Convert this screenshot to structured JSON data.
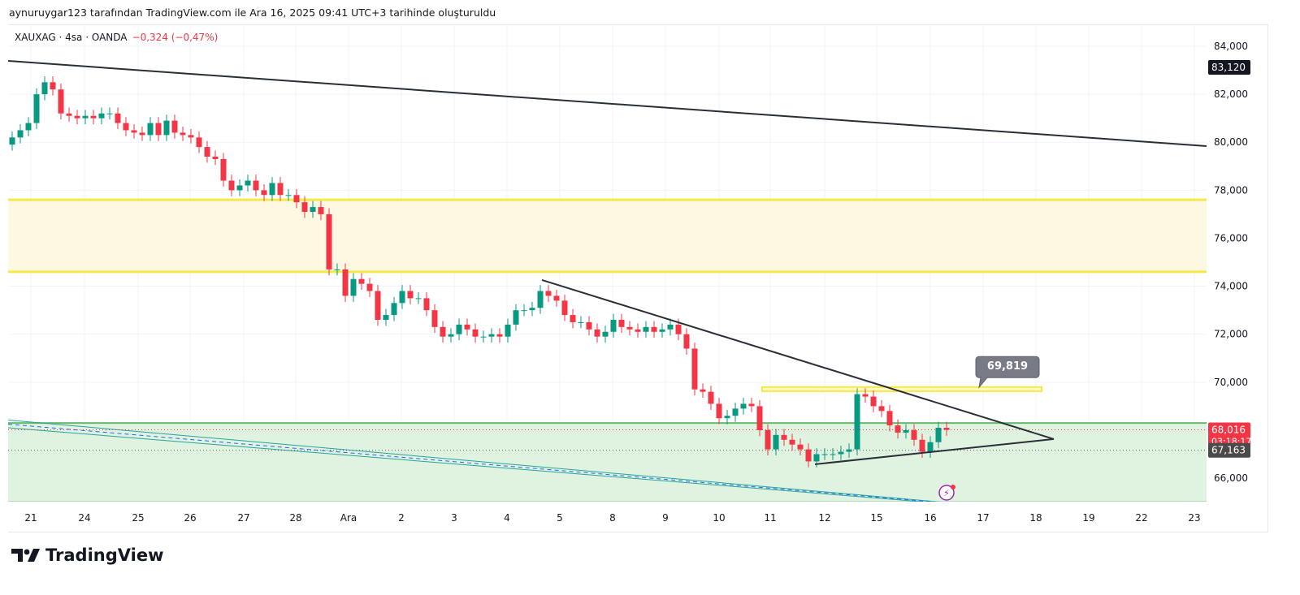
{
  "header": {
    "credit": "aynuruygar123 tarafından TradingView.com ile Ara 16, 2025 09:41 UTC+3 tarihinde oluşturuldu",
    "symbol": "XAUXAG · 4sa · OANDA",
    "change": "−0,324 (−0,47%)"
  },
  "logo": {
    "text": "TradingView"
  },
  "colors": {
    "up": "#089981",
    "down": "#f23645",
    "zone_yellow": "#fdf8e1",
    "zone_green": "#e0f2e0"
  },
  "chart_data": {
    "type": "candlestick",
    "title": "XAUXAG · 4sa · OANDA",
    "ylim": [
      65000,
      85000
    ],
    "y_ticks": [
      "84,000",
      "82,000",
      "80,000",
      "78,000",
      "76,000",
      "74,000",
      "72,000",
      "70,000",
      "66,000"
    ],
    "y_tick_values": [
      84000,
      82000,
      80000,
      78000,
      76000,
      74000,
      72000,
      70000,
      66000
    ],
    "x_ticks": [
      {
        "label": "21",
        "bar": 2.3
      },
      {
        "label": "24",
        "bar": 8.9
      },
      {
        "label": "25",
        "bar": 15.5
      },
      {
        "label": "26",
        "bar": 21.9
      },
      {
        "label": "27",
        "bar": 28.5
      },
      {
        "label": "28",
        "bar": 34.9
      },
      {
        "label": "Ara",
        "bar": 41.4
      },
      {
        "label": "2",
        "bar": 47.9
      },
      {
        "label": "3",
        "bar": 54.4
      },
      {
        "label": "4",
        "bar": 60.9
      },
      {
        "label": "5",
        "bar": 67.4
      },
      {
        "label": "8",
        "bar": 73.9
      },
      {
        "label": "9",
        "bar": 80.4
      },
      {
        "label": "10",
        "bar": 87
      },
      {
        "label": "11",
        "bar": 93.3
      },
      {
        "label": "12",
        "bar": 100
      },
      {
        "label": "15",
        "bar": 106.4
      },
      {
        "label": "16",
        "bar": 113
      },
      {
        "label": "17",
        "bar": 119.5
      },
      {
        "label": "18",
        "bar": 126
      },
      {
        "label": "19",
        "bar": 132.5
      },
      {
        "label": "22",
        "bar": 139
      },
      {
        "label": "23",
        "bar": 145.5
      }
    ],
    "first_open": 79900,
    "closes": [
      80200,
      80500,
      80800,
      82000,
      82500,
      82200,
      81200,
      81100,
      81000,
      81100,
      81000,
      81200,
      81200,
      80800,
      80500,
      80400,
      80300,
      80800,
      80300,
      80900,
      80400,
      80300,
      80200,
      79800,
      79400,
      79300,
      78400,
      78000,
      78200,
      78400,
      78000,
      77800,
      78300,
      77800,
      77800,
      77500,
      77100,
      77300,
      77000,
      74700,
      74700,
      73600,
      74300,
      74100,
      73800,
      72600,
      72800,
      73300,
      73800,
      73500,
      73500,
      73000,
      72300,
      71900,
      72000,
      72400,
      72200,
      71900,
      71900,
      72000,
      71900,
      72400,
      73000,
      73000,
      73100,
      73800,
      73600,
      73400,
      72800,
      72500,
      72500,
      72200,
      71900,
      72100,
      72600,
      72300,
      72200,
      72100,
      72300,
      72100,
      72200,
      72400,
      72000,
      71400,
      69700,
      69600,
      69100,
      68500,
      68600,
      68900,
      69100,
      69000,
      68000,
      67200,
      67800,
      67600,
      67400,
      67200,
      66700,
      67000,
      67000,
      67000,
      67100,
      67200,
      69500,
      69400,
      69000,
      68800,
      68200,
      67900,
      68000,
      67600,
      67100,
      67500,
      68100,
      68016
    ],
    "price_labels": {
      "high_marker": "83,120",
      "last_price": "68,016",
      "countdown": "03:18:17",
      "prev": "67,163",
      "callout": "69,819"
    },
    "price_levels": {
      "high_marker": 83120,
      "last_price": 68016,
      "prev": 67163,
      "callout": 69819
    },
    "drawings": {
      "top_trendline": [
        [
          -0.5,
          83390
        ],
        [
          147,
          79840
        ]
      ],
      "desc_trendline": [
        [
          65.2,
          74260
        ],
        [
          128.2,
          67630
        ]
      ],
      "asc_trendline": [
        [
          98.8,
          66580
        ],
        [
          128.2,
          67630
        ]
      ],
      "yellow_zone": [
        77600,
        74600
      ],
      "small_yellow_zone": {
        "from": 92.3,
        "to": 126.7,
        "top": 69800,
        "bottom": 69620
      },
      "green_zone": [
        68300,
        65000
      ],
      "channel_upper": [
        [
          -0.5,
          68420
        ],
        [
          114.5,
          65000
        ]
      ],
      "channel_lower": [
        [
          -0.5,
          68100
        ],
        [
          114.5,
          64950
        ]
      ],
      "channel_mid": [
        [
          -0.5,
          68250
        ],
        [
          114.5,
          64980
        ]
      ]
    }
  }
}
